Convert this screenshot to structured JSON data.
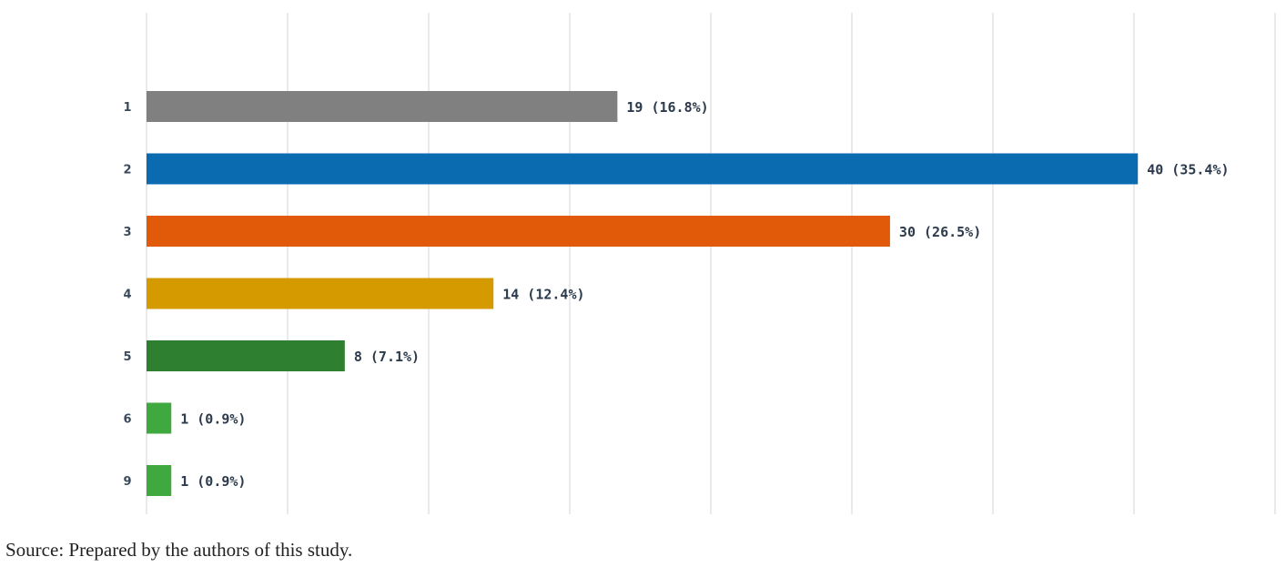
{
  "chart_data": {
    "type": "bar",
    "orientation": "horizontal",
    "categories": [
      "1",
      "2",
      "3",
      "4",
      "5",
      "6",
      "9"
    ],
    "values": [
      19,
      40,
      30,
      14,
      8,
      1,
      1
    ],
    "value_labels": [
      "19 (16.8%)",
      "40 (35.4%)",
      "30 (26.5%)",
      "14 (12.4%)",
      "8 (7.1%)",
      "1 (0.9%)",
      "1 (0.9%)"
    ],
    "colors": [
      "#808080",
      "#0a6bb0",
      "#e05a0a",
      "#d49a00",
      "#2e8030",
      "#3fa83f",
      "#3fa83f"
    ],
    "xlim": [
      0,
      45.5
    ],
    "grid": true,
    "title": "",
    "xlabel": "",
    "ylabel": ""
  },
  "source_note": "Source: Prepared by the authors of this study."
}
